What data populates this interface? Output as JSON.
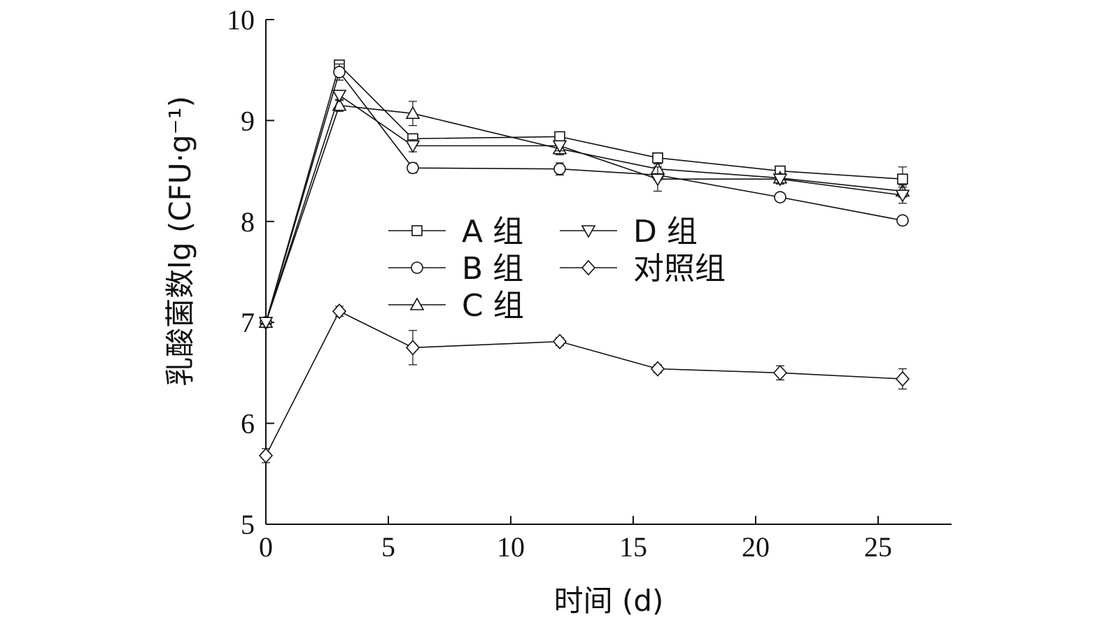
{
  "chart_data": {
    "type": "line",
    "xlabel": "时间 (d)",
    "ylabel": "乳酸菌数lg (CFU·g⁻¹)",
    "xlim": [
      0,
      28
    ],
    "ylim": [
      5,
      10
    ],
    "xticks": [
      "0",
      "5",
      "10",
      "15",
      "20",
      "25"
    ],
    "yticks": [
      "5",
      "6",
      "7",
      "8",
      "9",
      "10"
    ],
    "legend_position": "center",
    "grid": false,
    "x": [
      0,
      3,
      6,
      12,
      16,
      21,
      26
    ],
    "series": [
      {
        "name": "A 组",
        "marker": "square",
        "values": [
          7.0,
          9.55,
          8.82,
          8.84,
          8.63,
          8.5,
          8.42
        ],
        "errors": [
          0.02,
          0.04,
          0.04,
          0.04,
          0.04,
          0.04,
          0.12
        ]
      },
      {
        "name": "B 组",
        "marker": "circle",
        "values": [
          7.0,
          9.48,
          8.53,
          8.52,
          8.46,
          8.24,
          8.01
        ],
        "errors": [
          0.02,
          0.08,
          0.05,
          0.06,
          0.05,
          0.04,
          0.04
        ]
      },
      {
        "name": "C 组",
        "marker": "triangle-up",
        "values": [
          7.0,
          9.15,
          9.07,
          8.72,
          8.52,
          8.43,
          8.3
        ],
        "errors": [
          0.02,
          0.06,
          0.12,
          0.06,
          0.05,
          0.04,
          0.06
        ]
      },
      {
        "name": "D 组",
        "marker": "triangle-down",
        "values": [
          7.0,
          9.25,
          8.75,
          8.75,
          8.42,
          8.42,
          8.26
        ],
        "errors": [
          0.02,
          0.05,
          0.06,
          0.05,
          0.12,
          0.05,
          0.08
        ]
      },
      {
        "name": "对照组",
        "marker": "diamond",
        "values": [
          5.68,
          7.11,
          6.75,
          6.81,
          6.54,
          6.5,
          6.44
        ],
        "errors": [
          0.07,
          0.05,
          0.17,
          0.04,
          0.04,
          0.07,
          0.1
        ]
      }
    ]
  }
}
